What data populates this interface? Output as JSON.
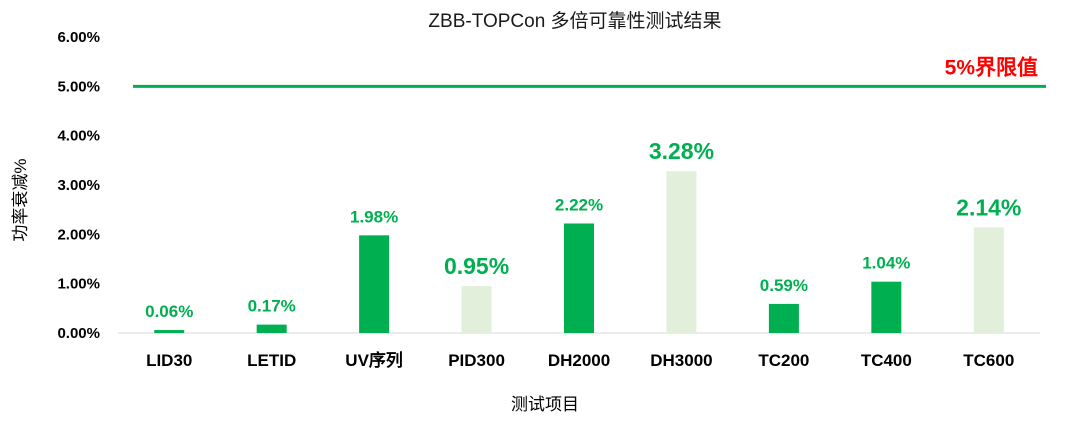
{
  "chart_data": {
    "type": "bar",
    "title": "ZBB-TOPCon 多倍可靠性测试结果",
    "xlabel": "测试项目",
    "ylabel": "功率衰减%",
    "ylim": [
      0,
      6
    ],
    "ytick_labels": [
      "0.00%",
      "1.00%",
      "2.00%",
      "3.00%",
      "4.00%",
      "5.00%",
      "6.00%"
    ],
    "categories": [
      "LID30",
      "LETID",
      "UV序列",
      "PID300",
      "DH2000",
      "DH3000",
      "TC200",
      "TC400",
      "TC600"
    ],
    "values": [
      0.06,
      0.17,
      1.98,
      0.95,
      2.22,
      3.28,
      0.59,
      1.04,
      2.14
    ],
    "data_labels": [
      "0.06%",
      "0.17%",
      "1.98%",
      "0.95%",
      "2.22%",
      "3.28%",
      "0.59%",
      "1.04%",
      "2.14%"
    ],
    "bar_styles": [
      "dark",
      "dark",
      "dark",
      "light",
      "dark",
      "light",
      "dark",
      "dark",
      "light"
    ],
    "label_emphasis": [
      "normal",
      "normal",
      "normal",
      "large",
      "normal",
      "large",
      "normal",
      "normal",
      "large"
    ],
    "reference_line": {
      "value": 5.0,
      "label": "5%界限值",
      "color": "#00b050",
      "label_color": "#ff0000"
    },
    "colors": {
      "dark": "#00b050",
      "light": "#e2efda",
      "label": "#00b050"
    },
    "grid": false,
    "legend": "none"
  }
}
